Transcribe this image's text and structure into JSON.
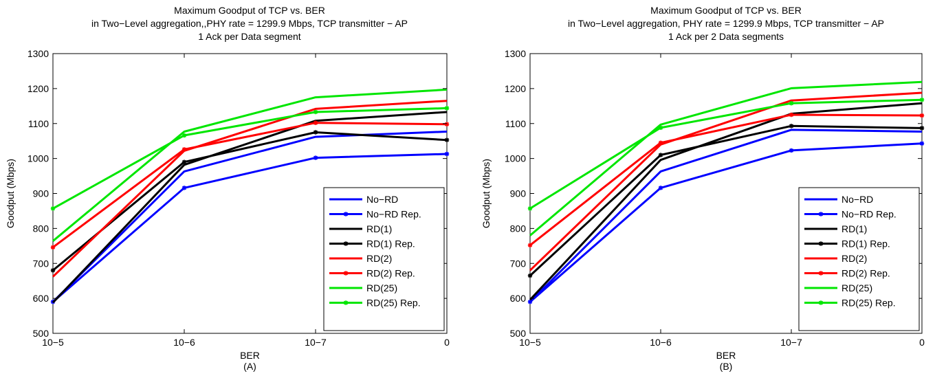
{
  "chart_data": [
    {
      "type": "line",
      "title_lines": [
        "Maximum Goodput of TCP vs. BER",
        "in Two−Level aggregation,,PHY rate = 1299.9 Mbps, TCP transmitter − AP",
        "1 Ack per Data segment"
      ],
      "xlabel": "BER",
      "panel_label": "(A)",
      "ylabel": "Goodput (Mbps)",
      "categories": [
        "10−5",
        "10−6",
        "10−7",
        "0"
      ],
      "ylim": [
        500,
        1300
      ],
      "yticks": [
        500,
        600,
        700,
        800,
        900,
        1000,
        1100,
        1200,
        1300
      ],
      "grid": false,
      "legend_position": "bottom-right",
      "series": [
        {
          "name": "No−RD",
          "color": "#0000ff",
          "marker": false,
          "values": [
            590,
            963,
            1062,
            1077
          ]
        },
        {
          "name": "No−RD Rep.",
          "color": "#0000ff",
          "marker": true,
          "values": [
            590,
            916,
            1002,
            1013
          ]
        },
        {
          "name": "RD(1)",
          "color": "#000000",
          "marker": false,
          "values": [
            588,
            982,
            1108,
            1133
          ]
        },
        {
          "name": "RD(1) Rep.",
          "color": "#000000",
          "marker": true,
          "values": [
            680,
            990,
            1075,
            1053
          ]
        },
        {
          "name": "RD(2)",
          "color": "#ff0000",
          "marker": false,
          "values": [
            662,
            1022,
            1142,
            1165
          ]
        },
        {
          "name": "RD(2) Rep.",
          "color": "#ff0000",
          "marker": true,
          "values": [
            746,
            1026,
            1102,
            1098
          ]
        },
        {
          "name": "RD(25)",
          "color": "#00e600",
          "marker": false,
          "values": [
            764,
            1077,
            1175,
            1197
          ]
        },
        {
          "name": "RD(25) Rep.",
          "color": "#00e600",
          "marker": true,
          "values": [
            857,
            1066,
            1133,
            1144
          ]
        }
      ]
    },
    {
      "type": "line",
      "title_lines": [
        "Maximum Goodput of TCP vs. BER",
        "in Two−Level aggregation, PHY rate = 1299.9 Mbps, TCP transmitter − AP",
        "1 Ack per 2 Data segments"
      ],
      "xlabel": "BER",
      "panel_label": "(B)",
      "ylabel": "Goodput (Mbps)",
      "categories": [
        "10−5",
        "10−6",
        "10−7",
        "0"
      ],
      "ylim": [
        500,
        1300
      ],
      "yticks": [
        500,
        600,
        700,
        800,
        900,
        1000,
        1100,
        1200,
        1300
      ],
      "grid": false,
      "legend_position": "bottom-right",
      "series": [
        {
          "name": "No−RD",
          "color": "#0000ff",
          "marker": false,
          "values": [
            590,
            963,
            1082,
            1077
          ]
        },
        {
          "name": "No−RD Rep.",
          "color": "#0000ff",
          "marker": true,
          "values": [
            590,
            916,
            1023,
            1043
          ]
        },
        {
          "name": "RD(1)",
          "color": "#000000",
          "marker": false,
          "values": [
            596,
            996,
            1128,
            1158
          ]
        },
        {
          "name": "RD(1) Rep.",
          "color": "#000000",
          "marker": true,
          "values": [
            665,
            1010,
            1093,
            1087
          ]
        },
        {
          "name": "RD(2)",
          "color": "#ff0000",
          "marker": false,
          "values": [
            680,
            1040,
            1166,
            1188
          ]
        },
        {
          "name": "RD(2) Rep.",
          "color": "#ff0000",
          "marker": true,
          "values": [
            752,
            1045,
            1125,
            1123
          ]
        },
        {
          "name": "RD(25)",
          "color": "#00e600",
          "marker": false,
          "values": [
            780,
            1097,
            1201,
            1219
          ]
        },
        {
          "name": "RD(25) Rep.",
          "color": "#00e600",
          "marker": true,
          "values": [
            857,
            1088,
            1158,
            1168
          ]
        }
      ]
    }
  ]
}
